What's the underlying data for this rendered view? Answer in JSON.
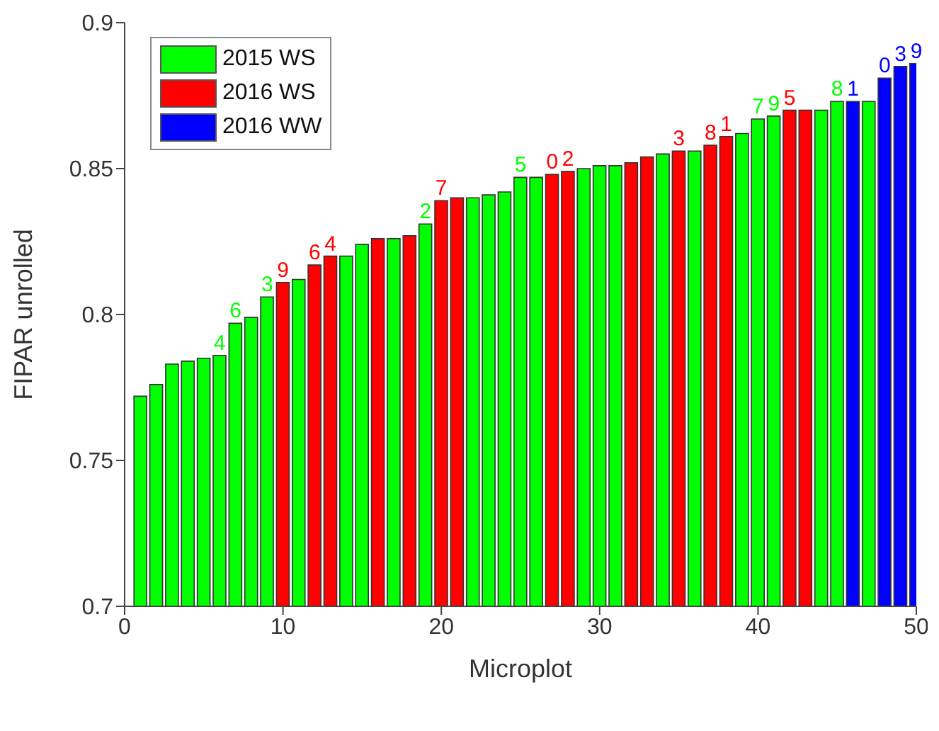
{
  "chart_data": {
    "type": "bar",
    "xlabel": "Microplot",
    "ylabel": "FIPAR unrolled",
    "x": [
      1,
      2,
      3,
      4,
      5,
      6,
      7,
      8,
      9,
      10,
      11,
      12,
      13,
      14,
      15,
      16,
      17,
      18,
      19,
      20,
      21,
      22,
      23,
      24,
      25,
      26,
      27,
      28,
      29,
      30,
      31,
      32,
      33,
      34,
      35,
      36,
      37,
      38,
      39,
      40,
      41,
      42,
      43,
      44,
      45,
      46,
      47,
      48,
      49,
      50
    ],
    "xlim": [
      0,
      50
    ],
    "xticks": [
      0,
      10,
      20,
      30,
      40,
      50
    ],
    "ylim": [
      0.7,
      0.9
    ],
    "yticks": [
      0.7,
      0.75,
      0.8,
      0.85,
      0.9
    ],
    "legend": "top left",
    "series": [
      {
        "name": "2015 WS",
        "color": "#00ff00",
        "values": [
          0.772,
          0.776,
          0.783,
          0.784,
          0.785,
          0.786,
          0.797,
          0.799,
          0.806,
          null,
          0.812,
          null,
          null,
          0.82,
          0.824,
          null,
          0.826,
          null,
          0.831,
          null,
          null,
          0.84,
          0.841,
          0.842,
          0.847,
          0.847,
          null,
          null,
          0.85,
          0.851,
          0.851,
          null,
          null,
          0.855,
          null,
          0.856,
          null,
          null,
          0.862,
          0.867,
          0.868,
          null,
          null,
          0.87,
          0.873,
          null,
          0.873,
          null,
          null,
          null
        ]
      },
      {
        "name": "2016 WS",
        "color": "#ff0000",
        "values": [
          null,
          null,
          null,
          null,
          null,
          null,
          null,
          null,
          null,
          0.811,
          null,
          0.817,
          0.82,
          null,
          null,
          0.826,
          null,
          0.827,
          null,
          0.839,
          0.84,
          null,
          null,
          null,
          null,
          null,
          0.848,
          0.849,
          null,
          null,
          null,
          0.852,
          0.854,
          null,
          0.856,
          null,
          0.858,
          0.861,
          null,
          null,
          null,
          0.87,
          0.87,
          null,
          null,
          null,
          null,
          null,
          null,
          null
        ]
      },
      {
        "name": "2016 WW",
        "color": "#0000ff",
        "values": [
          null,
          null,
          null,
          null,
          null,
          null,
          null,
          null,
          null,
          null,
          null,
          null,
          null,
          null,
          null,
          null,
          null,
          null,
          null,
          null,
          null,
          null,
          null,
          null,
          null,
          null,
          null,
          null,
          null,
          null,
          null,
          null,
          null,
          null,
          null,
          null,
          null,
          null,
          null,
          null,
          null,
          null,
          null,
          null,
          null,
          0.873,
          null,
          0.881,
          0.885,
          0.886
        ]
      }
    ],
    "annotations": [
      {
        "text": "4",
        "x": 6,
        "y": 0.786
      },
      {
        "text": "6",
        "x": 7,
        "y": 0.797
      },
      {
        "text": "3",
        "x": 9,
        "y": 0.806
      },
      {
        "text": "9",
        "x": 10,
        "y": 0.811
      },
      {
        "text": "6",
        "x": 12,
        "y": 0.817
      },
      {
        "text": "4",
        "x": 13,
        "y": 0.82
      },
      {
        "text": "2",
        "x": 19,
        "y": 0.831
      },
      {
        "text": "7",
        "x": 20,
        "y": 0.839
      },
      {
        "text": "5",
        "x": 25,
        "y": 0.847
      },
      {
        "text": "0",
        "x": 27,
        "y": 0.848
      },
      {
        "text": "2",
        "x": 28,
        "y": 0.849
      },
      {
        "text": "3",
        "x": 35,
        "y": 0.856
      },
      {
        "text": "8",
        "x": 37,
        "y": 0.858
      },
      {
        "text": "1",
        "x": 38,
        "y": 0.861
      },
      {
        "text": "7",
        "x": 40,
        "y": 0.867
      },
      {
        "text": "9",
        "x": 41,
        "y": 0.868
      },
      {
        "text": "5",
        "x": 42,
        "y": 0.87
      },
      {
        "text": "8",
        "x": 45,
        "y": 0.873
      },
      {
        "text": "1",
        "x": 46,
        "y": 0.873
      },
      {
        "text": "0",
        "x": 48,
        "y": 0.881
      },
      {
        "text": "3",
        "x": 49,
        "y": 0.885
      },
      {
        "text": "9",
        "x": 50,
        "y": 0.886
      }
    ]
  }
}
